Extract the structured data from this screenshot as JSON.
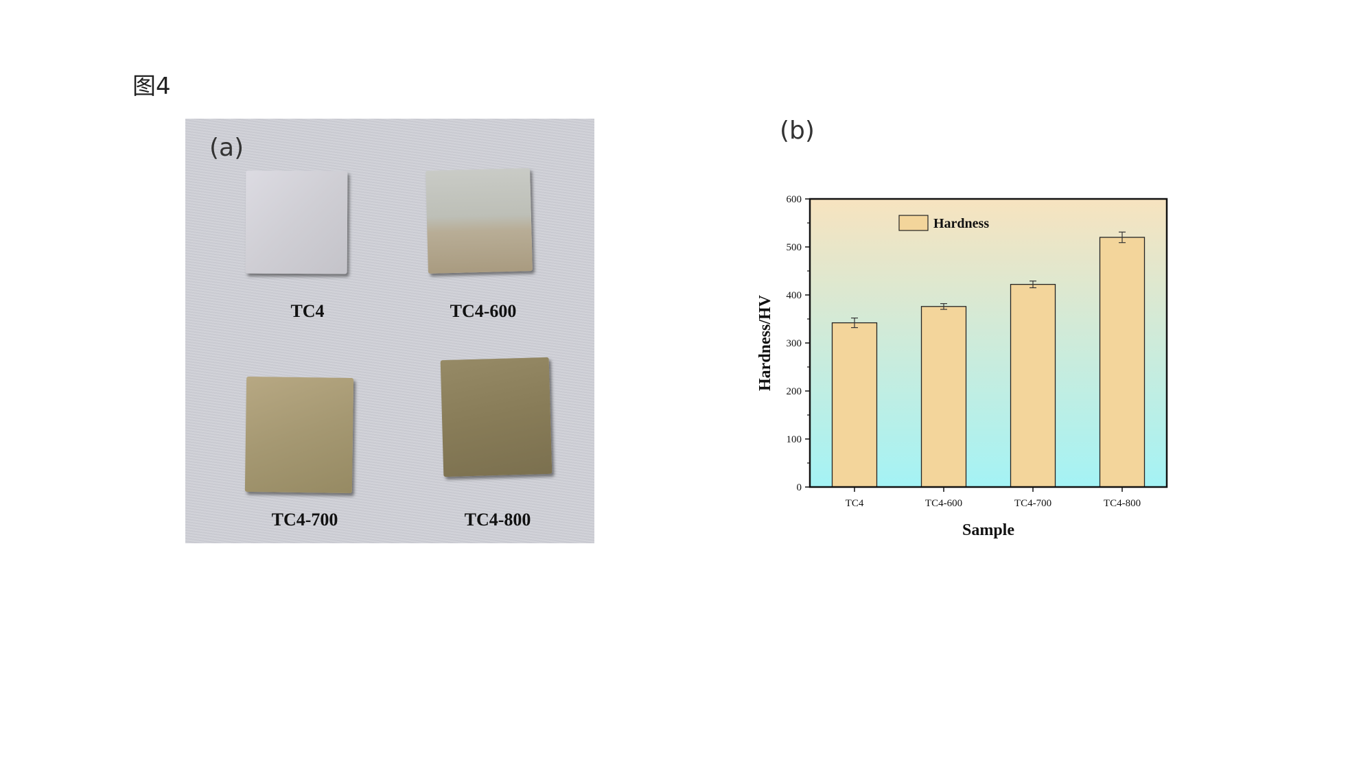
{
  "figure_label": "图4",
  "panel_a": {
    "tag": "(a)",
    "samples": [
      {
        "label": "TC4"
      },
      {
        "label": "TC4-600"
      },
      {
        "label": "TC4-700"
      },
      {
        "label": "TC4-800"
      }
    ]
  },
  "panel_b": {
    "tag": "(b)"
  },
  "chart_data": {
    "type": "bar",
    "title": "",
    "xlabel": "Sample",
    "ylabel": "Hardness/HV",
    "categories": [
      "TC4",
      "TC4-600",
      "TC4-700",
      "TC4-800"
    ],
    "series": [
      {
        "name": "Hardness",
        "values": [
          342,
          376,
          422,
          520
        ],
        "errors": [
          10,
          6,
          7,
          11
        ]
      }
    ],
    "ylim": [
      0,
      600
    ],
    "yticks": [
      0,
      100,
      200,
      300,
      400,
      500,
      600
    ],
    "grid": false,
    "legend_position": "top-left",
    "colors": {
      "bar_fill": "#f3d59b",
      "bar_stroke": "#222222",
      "background_top": "#f7e3bf",
      "background_bottom": "#a4f3f5"
    }
  }
}
